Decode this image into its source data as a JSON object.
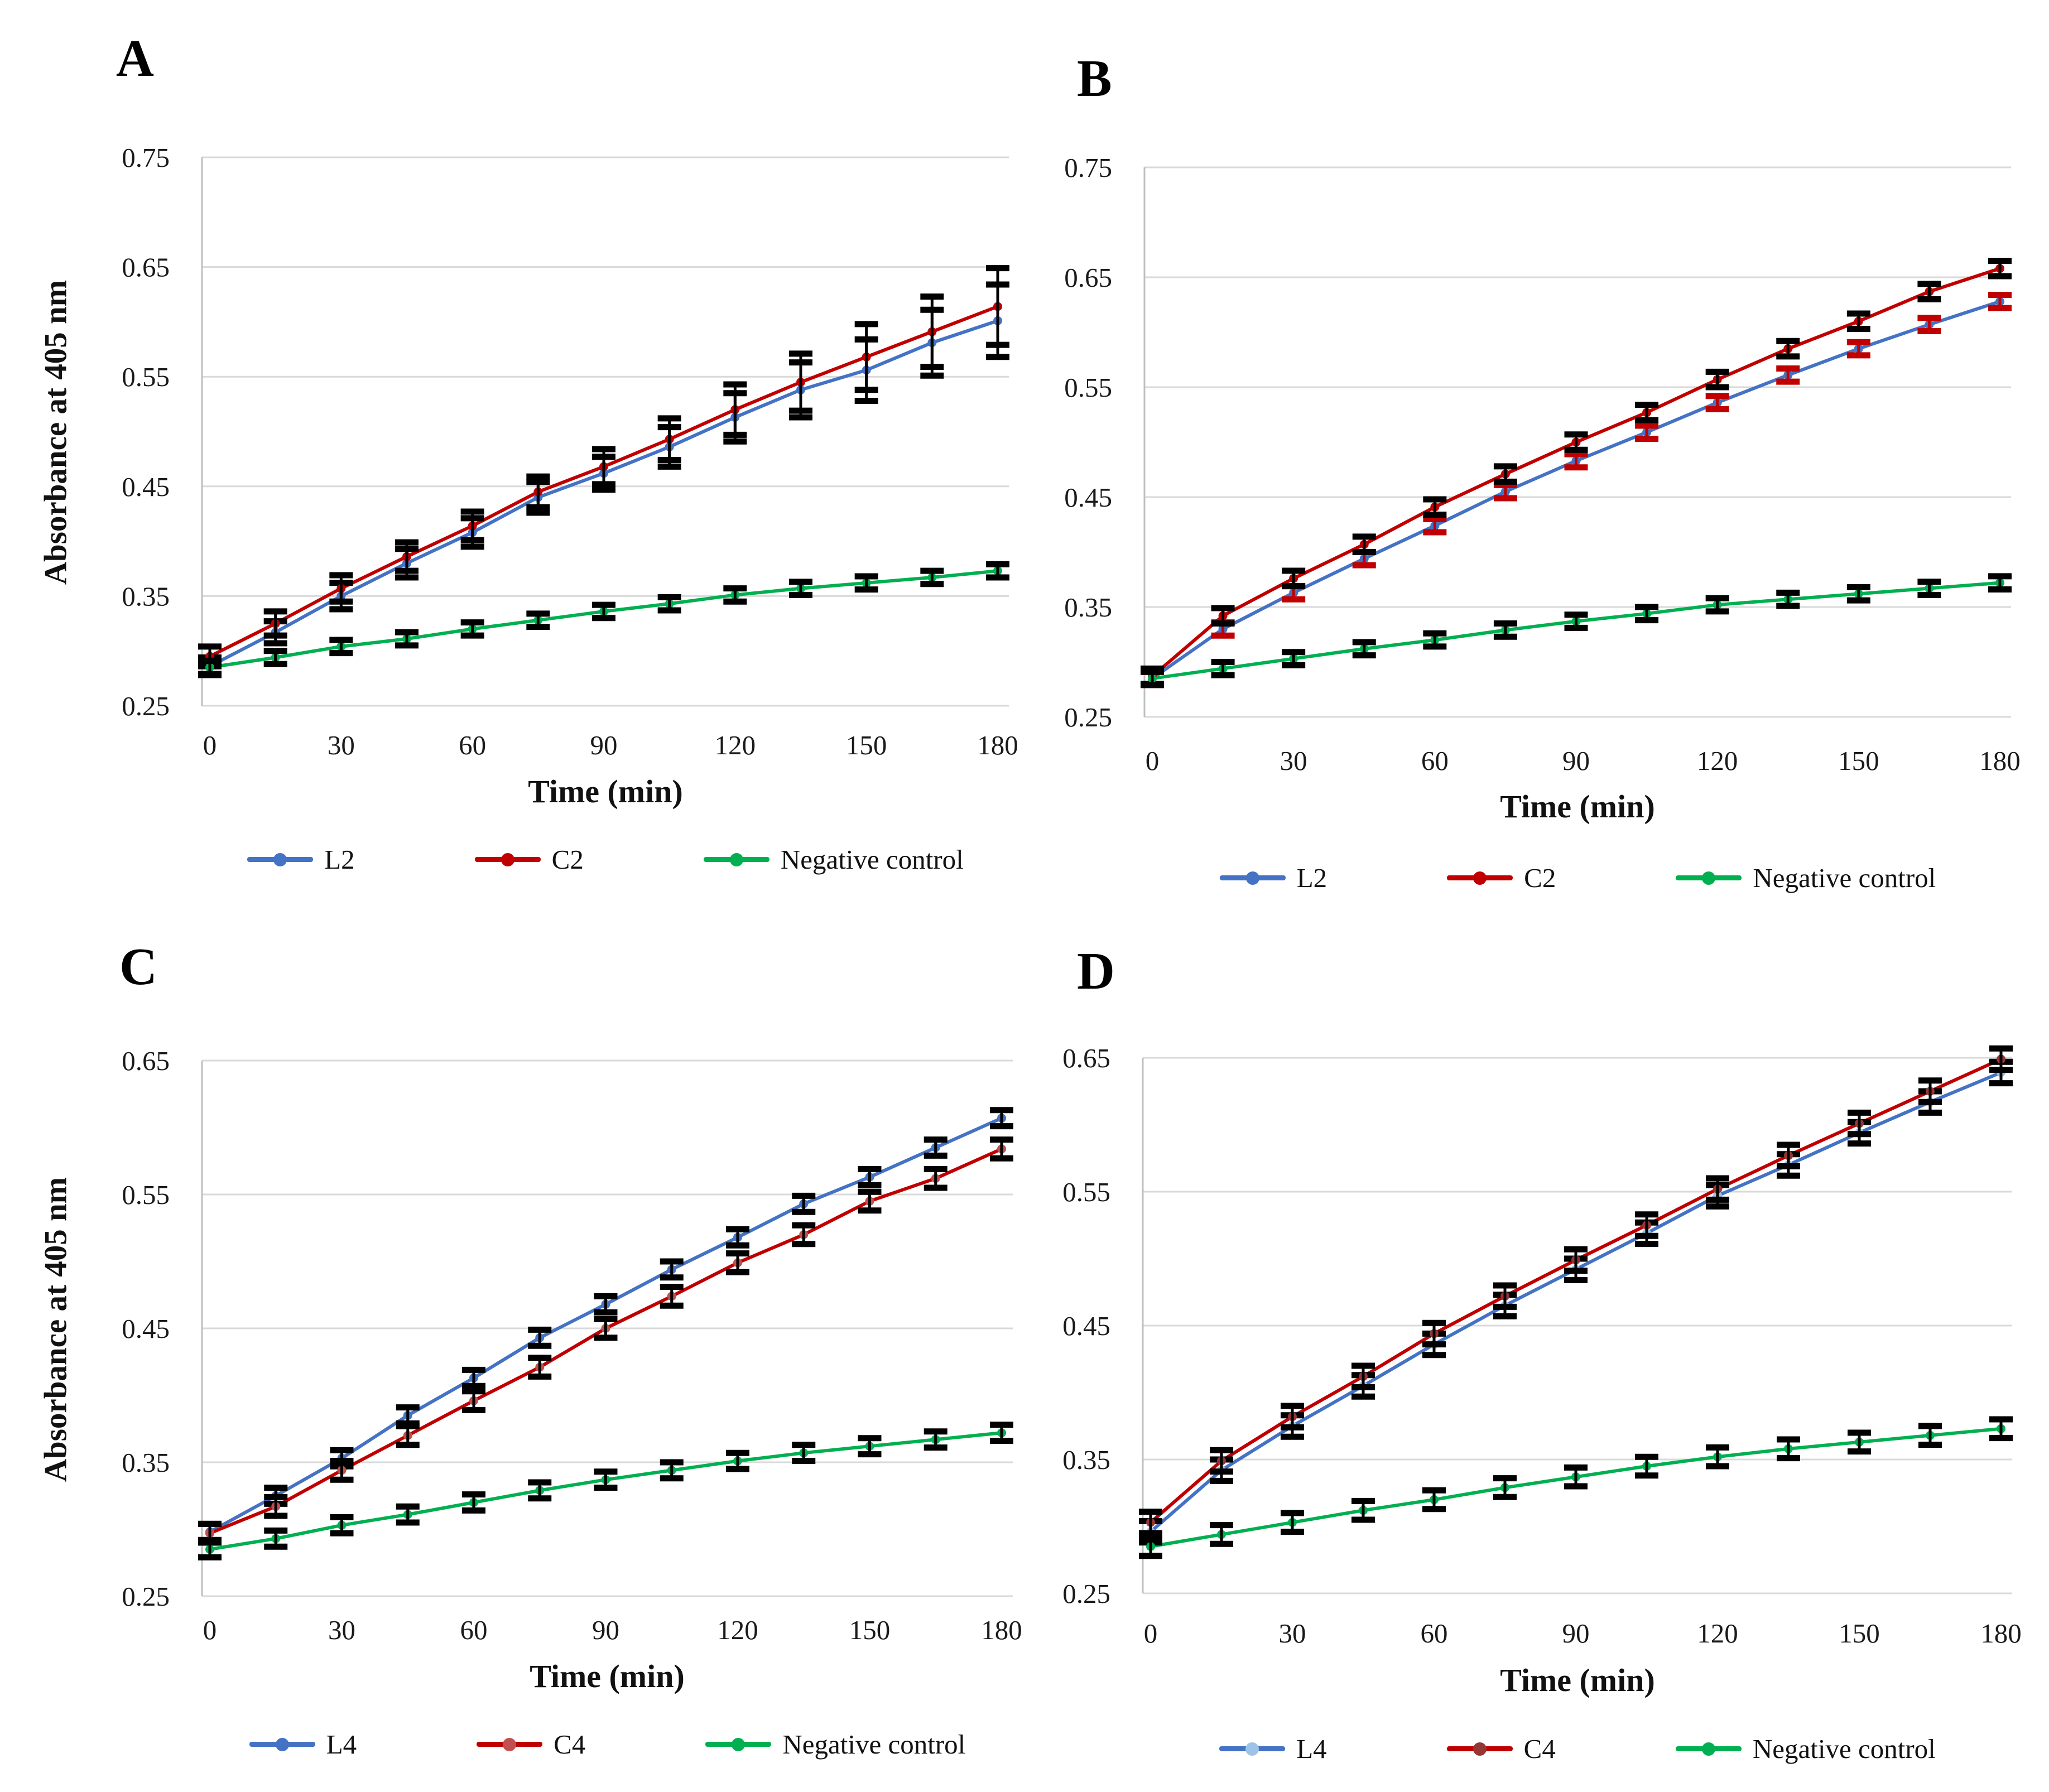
{
  "figure": {
    "background": "#ffffff",
    "grid_color": "#d9d9d9",
    "axis_color": "#bfbfbf"
  },
  "chart_data": [
    {
      "type": "line",
      "label": "A",
      "y_title": "Absorbance at 405 nm",
      "x_title": "Time (min)",
      "x": [
        0,
        15,
        30,
        45,
        60,
        75,
        90,
        105,
        120,
        135,
        150,
        165,
        180
      ],
      "xticks": [
        "0",
        "30",
        "60",
        "90",
        "120",
        "150",
        "180"
      ],
      "yticks": [
        "0.25",
        "0.35",
        "0.45",
        "0.55",
        "0.65",
        "0.75"
      ],
      "ylim": [
        0.25,
        0.75
      ],
      "grid": "horizontal",
      "legend_position": "bottom",
      "series": [
        {
          "name": "L2",
          "line_color": "#4472C4",
          "marker_color": "#4472C4",
          "err_color": "#000000",
          "values": [
            0.286,
            0.317,
            0.35,
            0.38,
            0.408,
            0.44,
            0.462,
            0.486,
            0.513,
            0.538,
            0.556,
            0.581,
            0.601
          ],
          "errors": [
            0.008,
            0.01,
            0.012,
            0.013,
            0.013,
            0.014,
            0.015,
            0.018,
            0.022,
            0.025,
            0.028,
            0.03,
            0.033
          ]
        },
        {
          "name": "C2",
          "line_color": "#C00000",
          "marker_color": "#C00000",
          "err_color": "#000000",
          "values": [
            0.295,
            0.325,
            0.357,
            0.386,
            0.414,
            0.445,
            0.468,
            0.493,
            0.52,
            0.545,
            0.568,
            0.591,
            0.614
          ],
          "errors": [
            0.009,
            0.011,
            0.012,
            0.013,
            0.013,
            0.014,
            0.016,
            0.019,
            0.023,
            0.026,
            0.03,
            0.032,
            0.035
          ]
        },
        {
          "name": "Negative control",
          "line_color": "#00B050",
          "marker_color": "#00B050",
          "err_color": "#000000",
          "values": [
            0.285,
            0.294,
            0.304,
            0.311,
            0.32,
            0.328,
            0.336,
            0.343,
            0.351,
            0.357,
            0.362,
            0.367,
            0.373
          ],
          "errors": [
            0.006,
            0.006,
            0.006,
            0.006,
            0.006,
            0.006,
            0.006,
            0.006,
            0.006,
            0.006,
            0.006,
            0.006,
            0.006
          ]
        }
      ]
    },
    {
      "type": "line",
      "label": "B",
      "y_title": "",
      "x_title": "Time (min)",
      "x": [
        0,
        15,
        30,
        45,
        60,
        75,
        90,
        105,
        120,
        135,
        150,
        165,
        180
      ],
      "xticks": [
        "0",
        "30",
        "60",
        "90",
        "120",
        "150",
        "180"
      ],
      "yticks": [
        "0.25",
        "0.35",
        "0.45",
        "0.55",
        "0.65",
        "0.75"
      ],
      "ylim": [
        0.25,
        0.75
      ],
      "grid": "horizontal",
      "legend_position": "bottom",
      "series": [
        {
          "name": "L2",
          "line_color": "#4472C4",
          "marker_color": "#4472C4",
          "err_color": "#C00000",
          "values": [
            0.285,
            0.33,
            0.363,
            0.394,
            0.424,
            0.455,
            0.483,
            0.509,
            0.536,
            0.561,
            0.585,
            0.607,
            0.628
          ],
          "errors": [
            0.006,
            0.006,
            0.006,
            0.006,
            0.006,
            0.006,
            0.006,
            0.006,
            0.006,
            0.006,
            0.006,
            0.006,
            0.006
          ]
        },
        {
          "name": "C2",
          "line_color": "#C00000",
          "marker_color": "#C00000",
          "err_color": "#000000",
          "values": [
            0.287,
            0.342,
            0.376,
            0.407,
            0.441,
            0.471,
            0.5,
            0.527,
            0.557,
            0.585,
            0.61,
            0.637,
            0.658
          ],
          "errors": [
            0.007,
            0.007,
            0.007,
            0.007,
            0.007,
            0.007,
            0.007,
            0.007,
            0.007,
            0.007,
            0.007,
            0.007,
            0.007
          ]
        },
        {
          "name": "Negative control",
          "line_color": "#00B050",
          "marker_color": "#00B050",
          "err_color": "#000000",
          "values": [
            0.285,
            0.294,
            0.303,
            0.312,
            0.32,
            0.329,
            0.337,
            0.344,
            0.352,
            0.357,
            0.362,
            0.367,
            0.372
          ],
          "errors": [
            0.006,
            0.006,
            0.006,
            0.006,
            0.006,
            0.006,
            0.006,
            0.006,
            0.006,
            0.006,
            0.006,
            0.006,
            0.006
          ]
        }
      ]
    },
    {
      "type": "line",
      "label": "C",
      "y_title": "Absorbance at 405 nm",
      "x_title": "Time (min)",
      "x": [
        0,
        15,
        30,
        45,
        60,
        75,
        90,
        105,
        120,
        135,
        150,
        165,
        180
      ],
      "xticks": [
        "0",
        "30",
        "60",
        "90",
        "120",
        "150",
        "180"
      ],
      "yticks": [
        "0.25",
        "0.35",
        "0.45",
        "0.55",
        "0.65"
      ],
      "ylim": [
        0.25,
        0.65
      ],
      "grid": "horizontal",
      "legend_position": "bottom",
      "series": [
        {
          "name": "L4",
          "line_color": "#4472C4",
          "marker_color": "#4472C4",
          "err_color": "#000000",
          "values": [
            0.298,
            0.325,
            0.353,
            0.385,
            0.413,
            0.443,
            0.468,
            0.494,
            0.518,
            0.543,
            0.563,
            0.585,
            0.607
          ],
          "errors": [
            0.006,
            0.006,
            0.006,
            0.006,
            0.006,
            0.006,
            0.006,
            0.006,
            0.006,
            0.006,
            0.006,
            0.006,
            0.006
          ]
        },
        {
          "name": "C4",
          "line_color": "#C00000",
          "marker_color": "#C0504D",
          "err_color": "#000000",
          "values": [
            0.297,
            0.317,
            0.344,
            0.37,
            0.396,
            0.421,
            0.45,
            0.474,
            0.499,
            0.52,
            0.545,
            0.562,
            0.584
          ],
          "errors": [
            0.007,
            0.007,
            0.007,
            0.007,
            0.007,
            0.007,
            0.007,
            0.007,
            0.007,
            0.007,
            0.007,
            0.007,
            0.007
          ]
        },
        {
          "name": "Negative control",
          "line_color": "#00B050",
          "marker_color": "#00B050",
          "err_color": "#000000",
          "values": [
            0.285,
            0.293,
            0.303,
            0.311,
            0.32,
            0.329,
            0.337,
            0.344,
            0.351,
            0.357,
            0.362,
            0.367,
            0.372
          ],
          "errors": [
            0.006,
            0.006,
            0.006,
            0.006,
            0.006,
            0.006,
            0.006,
            0.006,
            0.006,
            0.006,
            0.006,
            0.006,
            0.006
          ]
        }
      ]
    },
    {
      "type": "line",
      "label": "D",
      "y_title": "",
      "x_title": "Time (min)",
      "x": [
        0,
        15,
        30,
        45,
        60,
        75,
        90,
        105,
        120,
        135,
        150,
        165,
        180
      ],
      "xticks": [
        "0",
        "30",
        "60",
        "90",
        "120",
        "150",
        "180"
      ],
      "yticks": [
        "0.25",
        "0.35",
        "0.45",
        "0.55",
        "0.65"
      ],
      "ylim": [
        0.25,
        0.65
      ],
      "grid": "horizontal",
      "legend_position": "bottom",
      "series": [
        {
          "name": "L4",
          "line_color": "#4472C4",
          "marker_color": "#9DC3E6",
          "err_color": "#000000",
          "values": [
            0.296,
            0.342,
            0.375,
            0.405,
            0.436,
            0.465,
            0.492,
            0.519,
            0.547,
            0.57,
            0.594,
            0.617,
            0.639
          ],
          "errors": [
            0.008,
            0.008,
            0.008,
            0.008,
            0.008,
            0.008,
            0.008,
            0.008,
            0.008,
            0.008,
            0.008,
            0.008,
            0.008
          ]
        },
        {
          "name": "C4",
          "line_color": "#C00000",
          "marker_color": "#943634",
          "err_color": "#000000",
          "values": [
            0.303,
            0.349,
            0.382,
            0.412,
            0.444,
            0.472,
            0.499,
            0.525,
            0.552,
            0.577,
            0.601,
            0.625,
            0.649
          ],
          "errors": [
            0.008,
            0.008,
            0.008,
            0.008,
            0.008,
            0.008,
            0.008,
            0.008,
            0.008,
            0.008,
            0.008,
            0.008,
            0.008
          ]
        },
        {
          "name": "Negative control",
          "line_color": "#00B050",
          "marker_color": "#00B050",
          "err_color": "#000000",
          "values": [
            0.285,
            0.294,
            0.303,
            0.312,
            0.32,
            0.329,
            0.337,
            0.345,
            0.352,
            0.358,
            0.363,
            0.368,
            0.373
          ],
          "errors": [
            0.007,
            0.007,
            0.007,
            0.007,
            0.007,
            0.007,
            0.007,
            0.007,
            0.007,
            0.007,
            0.007,
            0.007,
            0.007
          ]
        }
      ]
    }
  ]
}
